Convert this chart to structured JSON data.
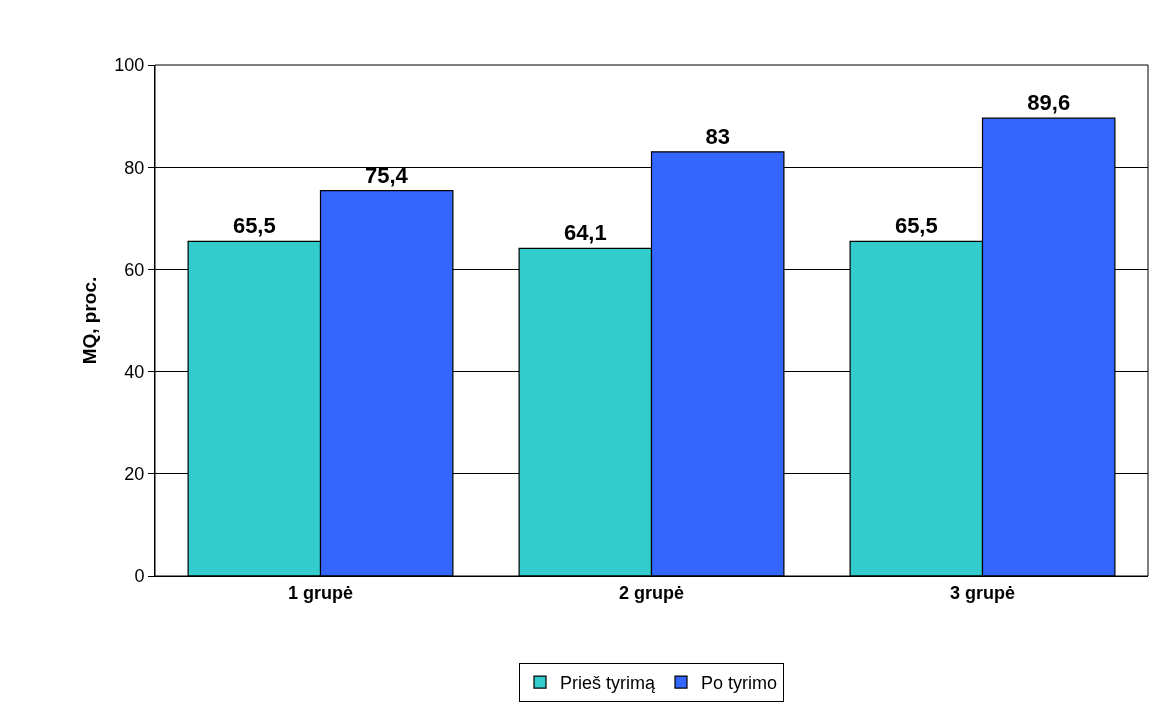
{
  "chart_data": {
    "type": "bar",
    "ylabel": "MQ, proc.",
    "categories": [
      "1 grupė",
      "2 grupė",
      "3 grupė"
    ],
    "series": [
      {
        "name": "Prieš tyrimą",
        "color": "#33cccc",
        "values": [
          65.5,
          64.1,
          65.5
        ],
        "value_labels": [
          "65,5",
          "64,1",
          "65,5"
        ]
      },
      {
        "name": "Po tyrimo",
        "color": "#3366ff",
        "values": [
          75.4,
          83,
          89.6
        ],
        "value_labels": [
          "75,4",
          "83",
          "89,6"
        ]
      }
    ],
    "ylim": [
      0,
      100
    ],
    "yticks": [
      0,
      20,
      40,
      60,
      80,
      100
    ],
    "grid": "y",
    "legend": "bottom"
  }
}
